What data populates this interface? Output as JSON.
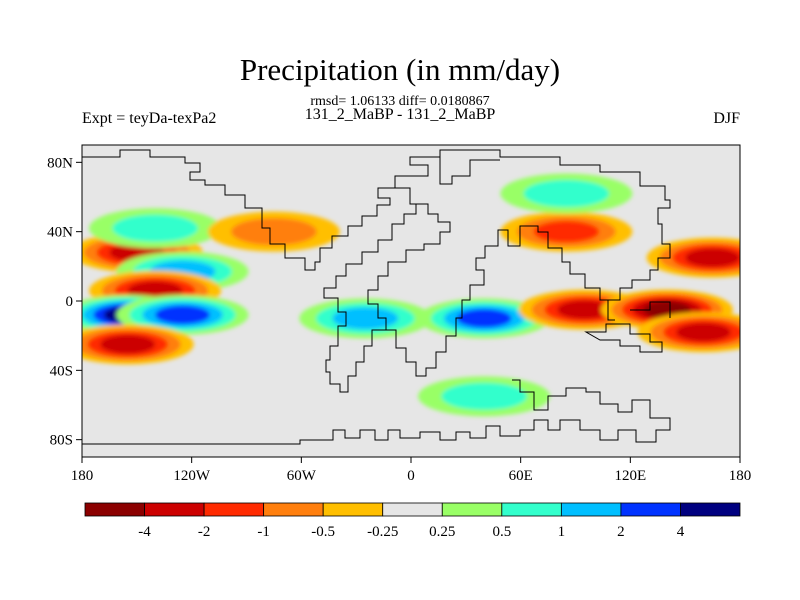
{
  "chart_data": {
    "type": "heatmap",
    "title": "Precipitation (in mm/day)",
    "stats_line": "rmsd= 1.06133 diff= 0.0180867",
    "subtitle": "131_2_MaBP - 131_2_MaBP",
    "left_label": "Expt = teyDa-texPa2",
    "right_label": "DJF",
    "x_range": [
      -180,
      180
    ],
    "y_range": [
      -90,
      90
    ],
    "x_ticks": [
      {
        "value": -180,
        "label": "180"
      },
      {
        "value": -120,
        "label": "120W"
      },
      {
        "value": -60,
        "label": "60W"
      },
      {
        "value": 0,
        "label": "0"
      },
      {
        "value": 60,
        "label": "60E"
      },
      {
        "value": 120,
        "label": "120E"
      },
      {
        "value": 180,
        "label": "180"
      }
    ],
    "y_ticks": [
      {
        "value": 80,
        "label": "80N"
      },
      {
        "value": 40,
        "label": "40N"
      },
      {
        "value": 0,
        "label": "0"
      },
      {
        "value": -40,
        "label": "40S"
      },
      {
        "value": -80,
        "label": "80S"
      }
    ],
    "colorbar": {
      "colors": [
        "#8b0000",
        "#cc0000",
        "#ff2a00",
        "#ff7f0e",
        "#ffbf00",
        "#e6e6e6",
        "#99ff66",
        "#33ffcc",
        "#00bfff",
        "#0033ff",
        "#000080"
      ],
      "labels": [
        "-4",
        "-2",
        "-1",
        "-0.5",
        "-0.25",
        "0.25",
        "0.5",
        "1",
        "2",
        "4"
      ]
    },
    "anomaly_features": [
      {
        "name": "central-pacific-ne-dry",
        "lon": -150,
        "lat": 28,
        "value": -2.5
      },
      {
        "name": "north-pacific-wet",
        "lon": -140,
        "lat": 42,
        "value": 0.7
      },
      {
        "name": "north-pacific-belt-wet",
        "lon": -125,
        "lat": 17,
        "value": 1.5
      },
      {
        "name": "pacific-equatorial-dry",
        "lon": -140,
        "lat": 6,
        "value": -3
      },
      {
        "name": "pacific-south-wet-core",
        "lon": -155,
        "lat": -8,
        "value": 4.5
      },
      {
        "name": "pacific-south-wet",
        "lon": -125,
        "lat": -8,
        "value": 2.5
      },
      {
        "name": "south-pacific-dry",
        "lon": -155,
        "lat": -25,
        "value": -3
      },
      {
        "name": "south-atlantic-wet",
        "lon": -25,
        "lat": -10,
        "value": 1.5
      },
      {
        "name": "indian-ocean-wet",
        "lon": 40,
        "lat": -10,
        "value": 3
      },
      {
        "name": "indian-ocean-dry",
        "lon": 95,
        "lat": -5,
        "value": -2.5
      },
      {
        "name": "west-pacific-dry-core",
        "lon": 140,
        "lat": -5,
        "value": -4.5
      },
      {
        "name": "west-pacific-dry",
        "lon": 160,
        "lat": -18,
        "value": -3
      },
      {
        "name": "north-pacific-east-dry",
        "lon": 165,
        "lat": 25,
        "value": -2.5
      },
      {
        "name": "east-asia-dry",
        "lon": 85,
        "lat": 40,
        "value": -1.5
      },
      {
        "name": "north-atlantic-dry",
        "lon": -75,
        "lat": 40,
        "value": -0.5
      },
      {
        "name": "asia-wet",
        "lon": 85,
        "lat": 62,
        "value": 0.7
      },
      {
        "name": "south-ocean-wet",
        "lon": 40,
        "lat": -55,
        "value": 0.6
      }
    ]
  }
}
